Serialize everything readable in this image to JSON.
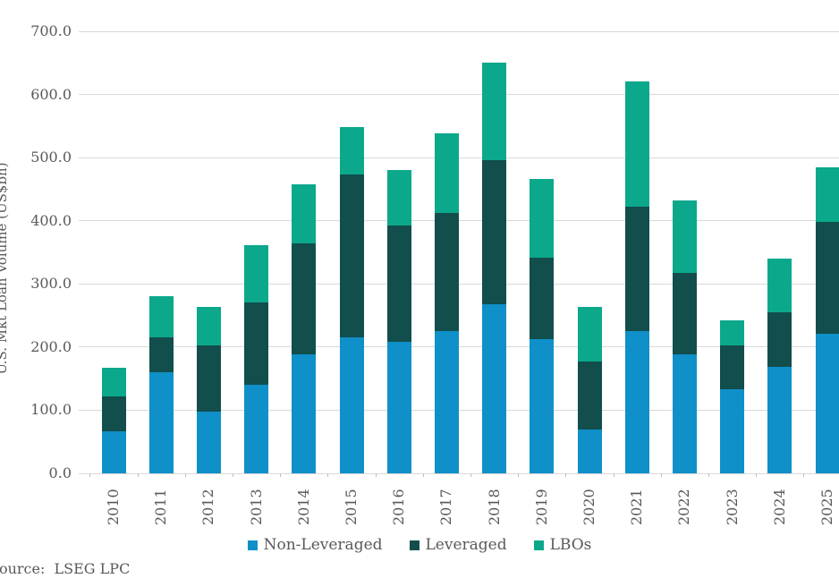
{
  "colors": {
    "non_leveraged": "#0f90c9",
    "leveraged": "#114e4c",
    "lbos": "#0ca88c",
    "gridline": "#d9d9d9",
    "tick_mark": "#bfbfbf",
    "text": "#595959",
    "background": "#ffffff"
  },
  "y_axis": {
    "title": "U.S. Mkt Loan Volume (US$bn)",
    "ticks": [
      "0.0",
      "100.0",
      "200.0",
      "300.0",
      "400.0",
      "500.0",
      "600.0",
      "700.0"
    ]
  },
  "source": "Source:  LSEG LPC",
  "chart_data": {
    "type": "bar",
    "stacked": true,
    "title": "",
    "xlabel": "",
    "ylabel": "U.S. Mkt Loan Volume (US$bn)",
    "ylim": [
      0,
      700
    ],
    "ytick_step": 100,
    "grid": true,
    "legend_position": "bottom",
    "categories": [
      "2010",
      "2011",
      "2012",
      "2013",
      "2014",
      "2015",
      "2016",
      "2017",
      "2018",
      "2019",
      "2020",
      "2021",
      "2022",
      "2023",
      "2024",
      "2025"
    ],
    "series": [
      {
        "name": "Non-Leveraged",
        "color": "#0f90c9",
        "values": [
          67,
          160,
          98,
          140,
          189,
          215,
          209,
          226,
          268,
          212,
          70,
          225,
          188,
          133,
          169,
          221
        ]
      },
      {
        "name": "Leveraged",
        "color": "#114e4c",
        "values": [
          55,
          55,
          105,
          131,
          175,
          259,
          183,
          187,
          228,
          129,
          107,
          198,
          129,
          70,
          86,
          177
        ]
      },
      {
        "name": "LBOs",
        "color": "#0ca88c",
        "values": [
          45,
          65,
          60,
          91,
          94,
          74,
          88,
          125,
          154,
          125,
          87,
          198,
          115,
          39,
          85,
          87
        ]
      }
    ]
  }
}
